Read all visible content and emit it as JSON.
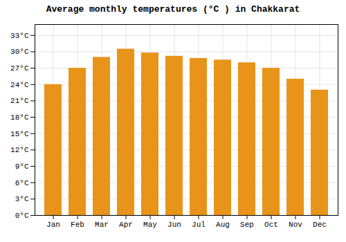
{
  "chart_data": {
    "type": "bar",
    "title": "Average monthly temperatures (°C ) in Chakkarat",
    "categories": [
      "Jan",
      "Feb",
      "Mar",
      "Apr",
      "May",
      "Jun",
      "Jul",
      "Aug",
      "Sep",
      "Oct",
      "Nov",
      "Dec"
    ],
    "values": [
      24.0,
      27.0,
      29.0,
      30.5,
      29.8,
      29.2,
      28.8,
      28.5,
      28.0,
      27.0,
      25.0,
      23.0
    ],
    "color": "#E8941A",
    "ylim": [
      0,
      35
    ],
    "yticks": [
      {
        "value": 0,
        "label": "0°C"
      },
      {
        "value": 3,
        "label": "3°C"
      },
      {
        "value": 6,
        "label": "6°C"
      },
      {
        "value": 9,
        "label": "9°C"
      },
      {
        "value": 12,
        "label": "12°C"
      },
      {
        "value": 15,
        "label": "15°C"
      },
      {
        "value": 18,
        "label": "18°C"
      },
      {
        "value": 21,
        "label": "21°C"
      },
      {
        "value": 24,
        "label": "24°C"
      },
      {
        "value": 27,
        "label": "27°C"
      },
      {
        "value": 30,
        "label": "30°C"
      },
      {
        "value": 33,
        "label": "33°C"
      }
    ],
    "grid": true
  }
}
